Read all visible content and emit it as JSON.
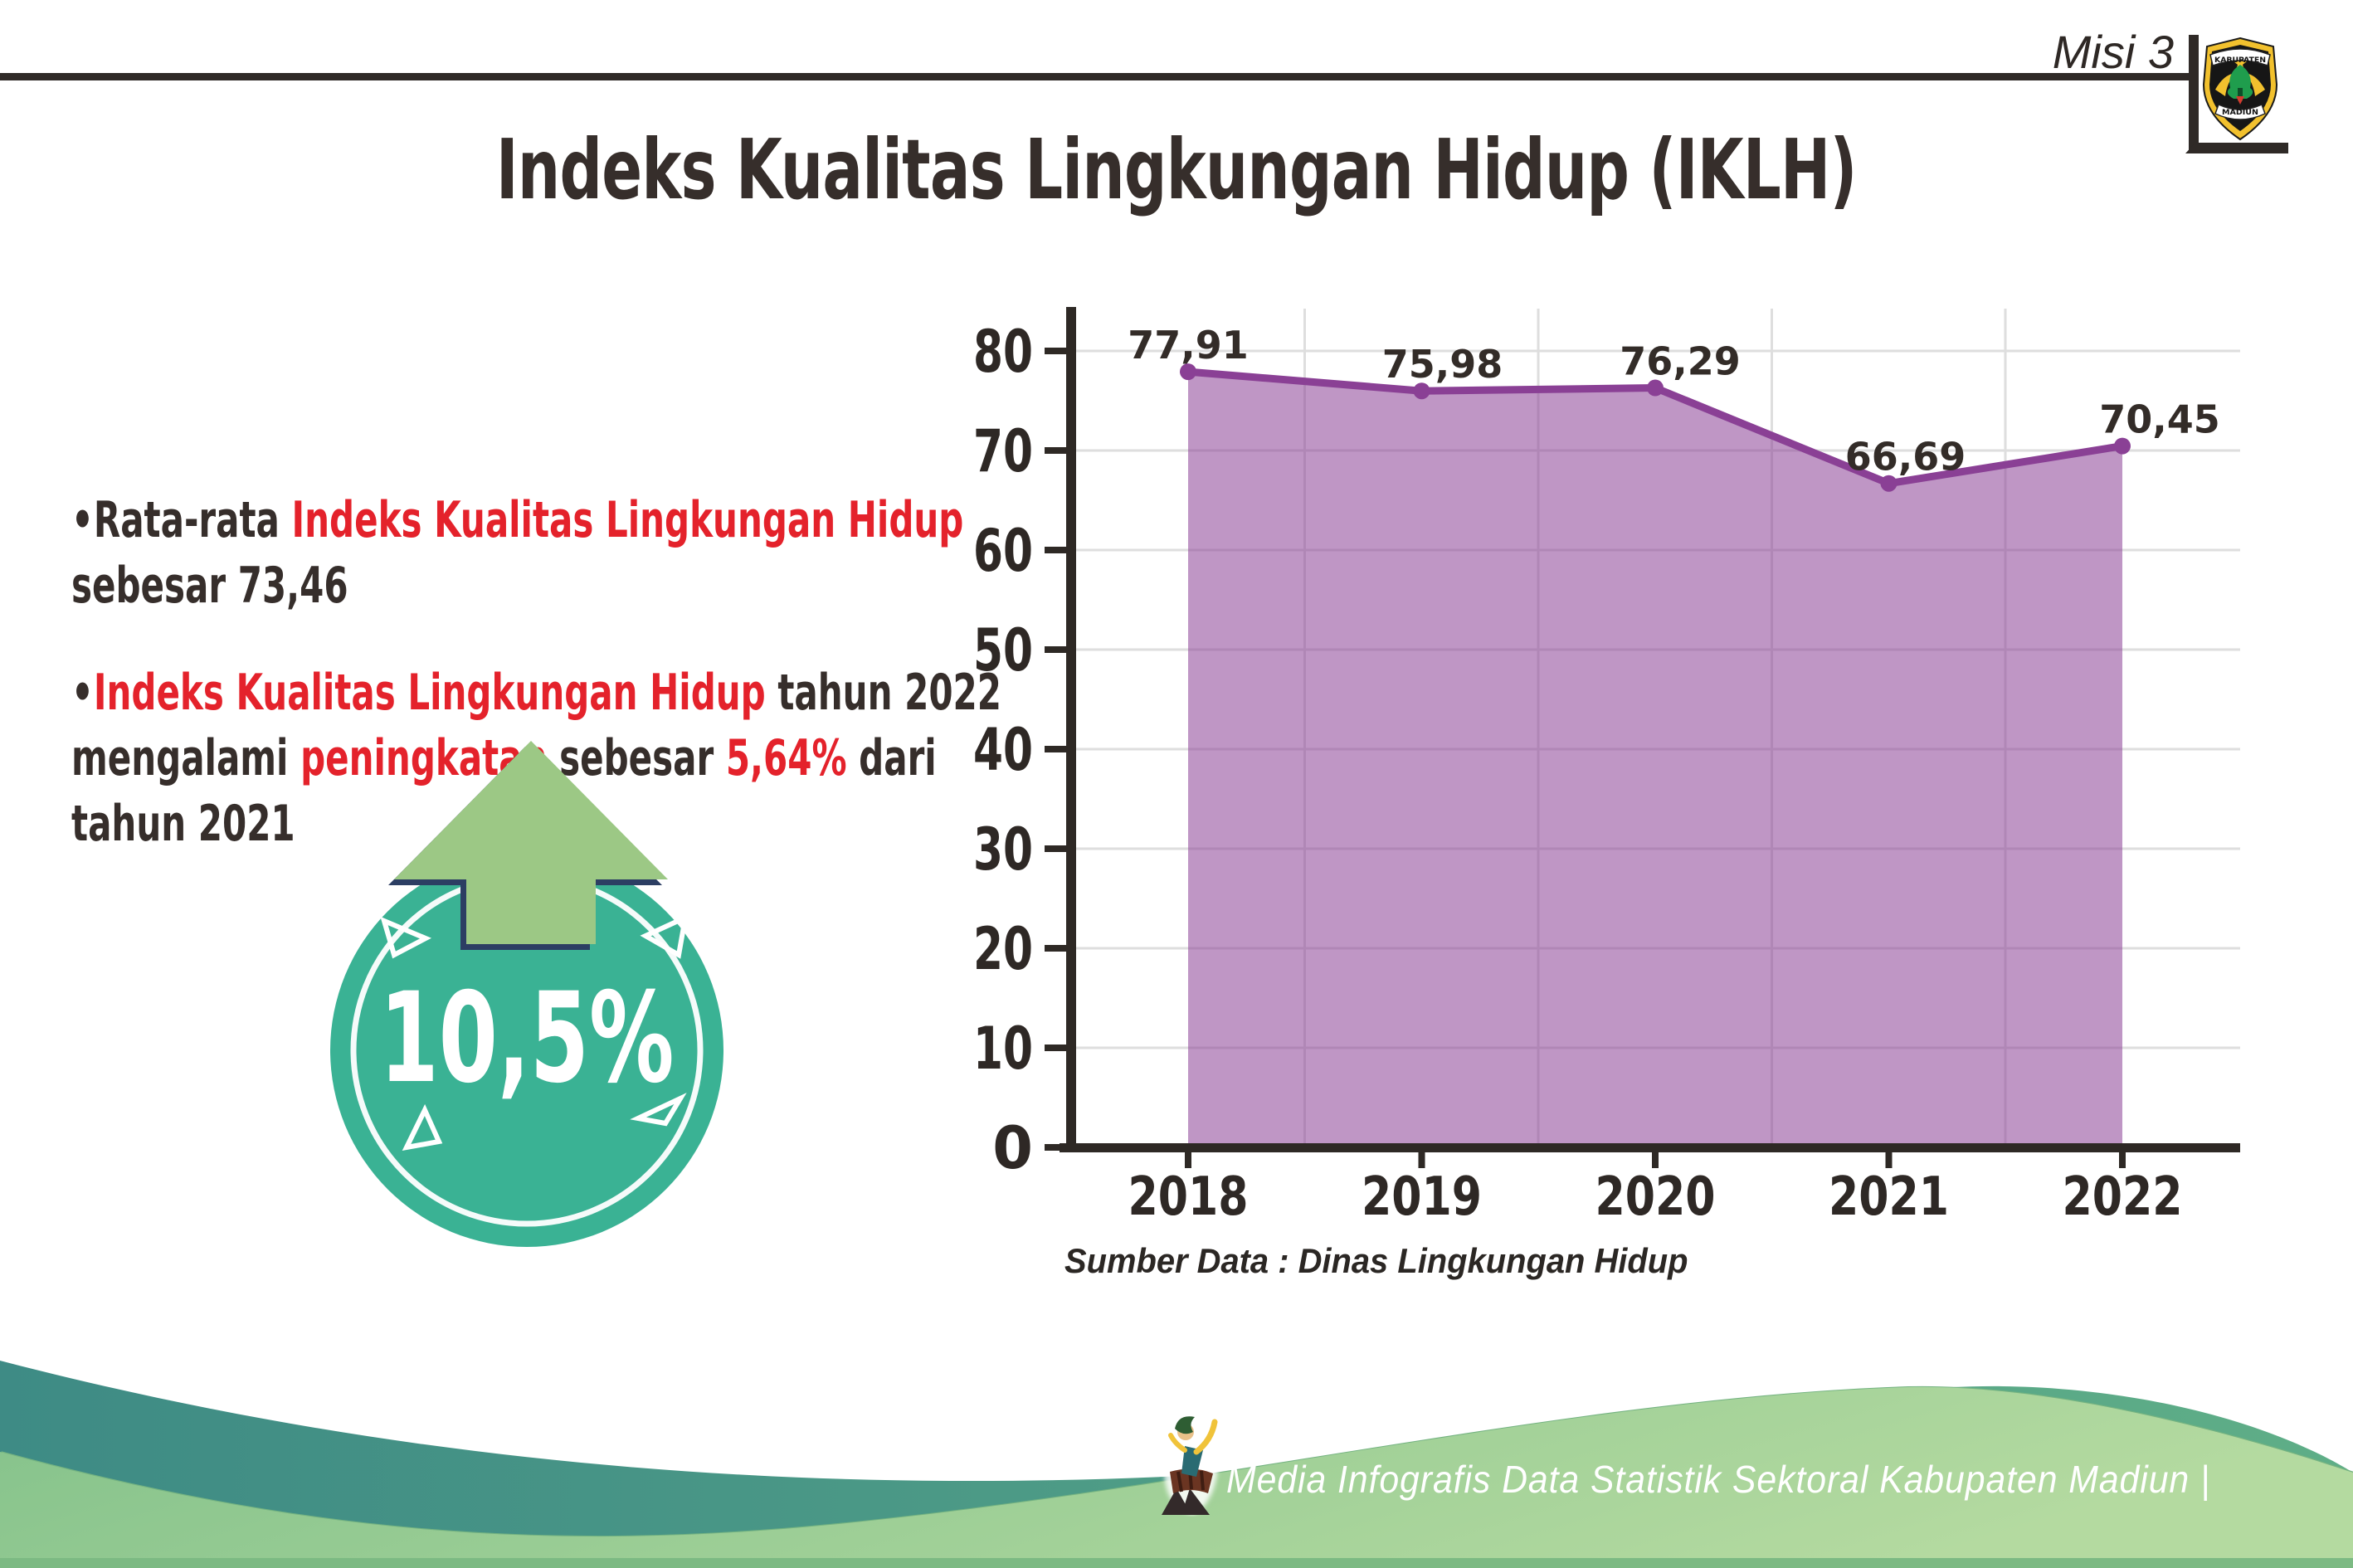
{
  "header": {
    "misi_label": "Misi 3",
    "title": "Indeks Kualitas Lingkungan Hidup (IKLH)",
    "logo": {
      "top_text": "KABUPATEN",
      "bottom_text": "MADIUN"
    }
  },
  "bullets": {
    "items": [
      {
        "lines": [
          [
            {
              "t": "•",
              "c": "dark"
            },
            {
              "t": "Rata-rata ",
              "c": "dark"
            },
            {
              "t": "Indeks Kualitas Lingkungan Hidup",
              "c": "red"
            }
          ],
          [
            {
              "t": "sebesar 73,46",
              "c": "dark"
            }
          ]
        ]
      },
      {
        "lines": [
          [
            {
              "t": "•",
              "c": "dark"
            },
            {
              "t": "Indeks Kualitas Lingkungan Hidup",
              "c": "red"
            },
            {
              "t": " tahun 2022",
              "c": "dark"
            }
          ],
          [
            {
              "t": "mengalami ",
              "c": "dark"
            },
            {
              "t": "peningkatan",
              "c": "red"
            },
            {
              "t": " sebesar ",
              "c": "dark"
            },
            {
              "t": "5,64%",
              "c": "red"
            },
            {
              "t": " dari",
              "c": "dark"
            }
          ],
          [
            {
              "t": "tahun 2021",
              "c": "dark"
            }
          ]
        ]
      }
    ]
  },
  "badge": {
    "value": "10,5%",
    "direction": "up"
  },
  "chart_data": {
    "type": "area",
    "categories": [
      "2018",
      "2019",
      "2020",
      "2021",
      "2022"
    ],
    "values": [
      77.91,
      75.98,
      76.29,
      66.69,
      70.45
    ],
    "point_labels": [
      "77,91",
      "75,98",
      "76,29",
      "66,69",
      "70,45"
    ],
    "title": "",
    "xlabel": "",
    "ylabel": "",
    "ylim": [
      0,
      85
    ],
    "ytick_step": 10,
    "ymax_tick": 80,
    "grid": true,
    "legend": "none",
    "line_color": "#8a4095",
    "fill_color": "rgba(138,64,149,0.55)",
    "grid_color": "#dedede",
    "axis_color": "#2e2925",
    "source": "Sumber Data : Dinas Lingkungan Hidup"
  },
  "footer": {
    "credit": "Media Infografis Data Statistik Sektoral Kabupaten Madiun |"
  },
  "colors": {
    "dark_text": "#362e2b",
    "red_text": "#e4222b",
    "badge_teal": "#3ab294",
    "arrow_green": "#9cc885",
    "arrow_outline": "#2c3e63",
    "wave_teal_left": "#3e8b85",
    "wave_teal_right": "#5fae87",
    "wave_green_left": "#84c28b",
    "wave_green_right": "#b4daa0",
    "wave_rim": "#74b381"
  }
}
